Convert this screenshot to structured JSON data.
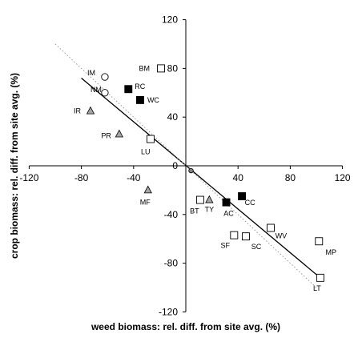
{
  "chart_data": {
    "type": "scatter",
    "xlabel": "weed biomass: rel. diff. from site avg. (%)",
    "ylabel": "crop biomass: rel. diff. from site avg. (%)",
    "xlim": [
      -120,
      120
    ],
    "ylim": [
      -120,
      120
    ],
    "xticks": [
      -120,
      -80,
      -40,
      0,
      40,
      80,
      120
    ],
    "yticks": [
      -120,
      -80,
      -40,
      0,
      40,
      80,
      120
    ],
    "grid": false,
    "points": [
      {
        "label": "IM",
        "x": -62,
        "y": 73,
        "marker": "circle-open"
      },
      {
        "label": "NM",
        "x": -62,
        "y": 60,
        "marker": "circle-open"
      },
      {
        "label": "BM",
        "x": -19,
        "y": 80,
        "marker": "square-open"
      },
      {
        "label": "RC",
        "x": -44,
        "y": 63,
        "marker": "square-filled"
      },
      {
        "label": "WC",
        "x": -35,
        "y": 54,
        "marker": "square-filled"
      },
      {
        "label": "IR",
        "x": -73,
        "y": 45,
        "marker": "triangle-gray"
      },
      {
        "label": "PR",
        "x": -51,
        "y": 26,
        "marker": "triangle-gray"
      },
      {
        "label": "LU",
        "x": -27,
        "y": 22,
        "marker": "square-open"
      },
      {
        "label": "MF",
        "x": -29,
        "y": -20,
        "marker": "triangle-gray"
      },
      {
        "label": "",
        "x": 4,
        "y": -4,
        "marker": "circle-gray-small"
      },
      {
        "label": "BT",
        "x": 11,
        "y": -28,
        "marker": "square-open"
      },
      {
        "label": "TY",
        "x": 18,
        "y": -28,
        "marker": "triangle-gray"
      },
      {
        "label": "AC",
        "x": 31,
        "y": -30,
        "marker": "square-filled"
      },
      {
        "label": "CC",
        "x": 43,
        "y": -25,
        "marker": "square-filled"
      },
      {
        "label": "WV",
        "x": 65,
        "y": -51,
        "marker": "square-open"
      },
      {
        "label": "SF",
        "x": 37,
        "y": -57,
        "marker": "square-open"
      },
      {
        "label": "SC",
        "x": 46,
        "y": -58,
        "marker": "square-open"
      },
      {
        "label": "MP",
        "x": 102,
        "y": -62,
        "marker": "square-open"
      },
      {
        "label": "LT",
        "x": 103,
        "y": -92,
        "marker": "square-open"
      }
    ],
    "lines": [
      {
        "kind": "fit",
        "style": "solid",
        "color": "#000000",
        "x": [
          -80,
          103
        ],
        "y": [
          72,
          -92
        ]
      },
      {
        "kind": "reference",
        "style": "dotted",
        "color": "#999999",
        "x": [
          -100,
          100
        ],
        "y": [
          100,
          -100
        ]
      }
    ]
  }
}
